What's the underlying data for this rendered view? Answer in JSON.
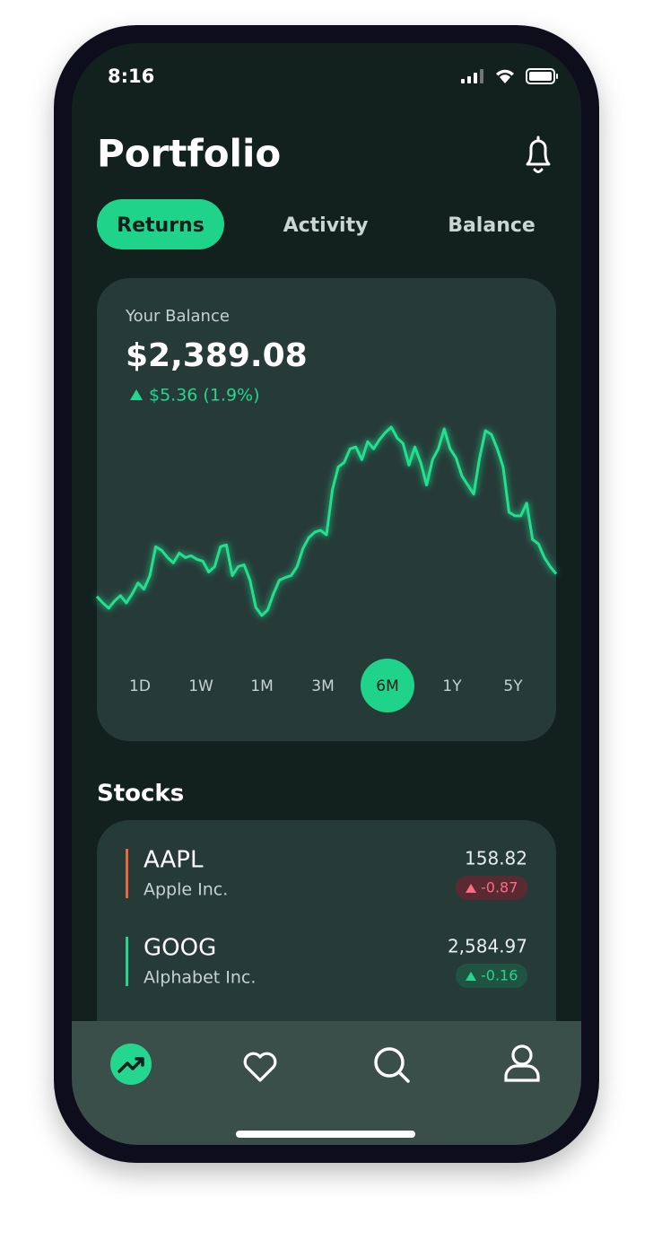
{
  "status_bar": {
    "time": "8:16"
  },
  "header": {
    "title": "Portfolio"
  },
  "tabs": {
    "items": [
      "Returns",
      "Activity",
      "Balance"
    ],
    "selected": 0
  },
  "balance": {
    "label": "Your Balance",
    "amount": "$2,389.08",
    "change": "$5.36 (1.9%)",
    "chart": {
      "type": "line",
      "color": "#22e08f",
      "values": [
        37,
        30,
        24,
        32,
        38,
        30,
        40,
        52,
        45,
        60,
        92,
        88,
        80,
        74,
        85,
        80,
        82,
        78,
        76,
        64,
        70,
        92,
        94,
        60,
        70,
        72,
        55,
        25,
        16,
        22,
        40,
        55,
        58,
        60,
        70,
        90,
        102,
        108,
        110,
        105,
        155,
        180,
        185,
        200,
        202,
        188,
        208,
        200,
        210,
        218,
        224,
        212,
        206,
        182,
        202,
        185,
        160,
        188,
        200,
        222,
        200,
        190,
        170,
        160,
        150,
        190,
        220,
        216,
        200,
        180,
        130,
        126,
        126,
        140,
        100,
        95,
        80,
        70,
        62
      ]
    },
    "ranges": {
      "items": [
        "1D",
        "1W",
        "1M",
        "3M",
        "6M",
        "1Y",
        "5Y"
      ],
      "selected": 4
    }
  },
  "stocks": {
    "title": "Stocks",
    "items": [
      {
        "symbol": "AAPL",
        "name": "Apple Inc.",
        "price": "158.82",
        "change": "-0.87",
        "color": "#e86a3c",
        "change_color": "#ff6b81",
        "pill_color": "#5a2a33"
      },
      {
        "symbol": "GOOG",
        "name": "Alphabet Inc.",
        "price": "2,584.97",
        "change": "-0.16",
        "color": "#25d68f",
        "change_color": "#25d68f",
        "pill_color": "#1f5443"
      }
    ]
  }
}
